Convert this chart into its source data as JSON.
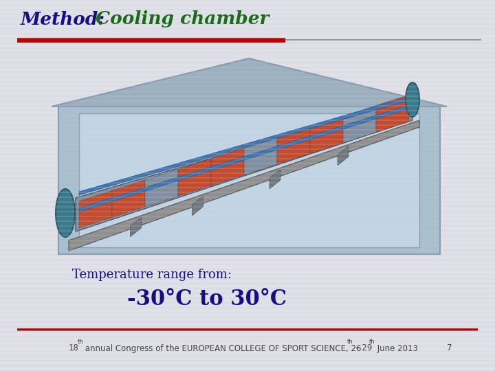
{
  "title_method": "Method:",
  "title_cooling": " Cooling chamber",
  "title_method_color": "#1a0d82",
  "title_cooling_color": "#1a6b1a",
  "bg_color": "#E0E0E8",
  "stripe_color": "#C8C8D0",
  "red_line_color": "#BB0000",
  "gray_line_color": "#999999",
  "temp_label": "Temperature range from:",
  "temp_range": "-30°C to 30°C",
  "temp_label_color": "#1a0d82",
  "temp_range_color": "#1a0d82",
  "footer_color": "#444444",
  "chamber_outer_bg": "#A8BFD0",
  "chamber_roof_color": "#9AB0C0",
  "chamber_inner_bg": "#C5D8E8",
  "chamber_wall_color": "#8899AA",
  "conveyor_blue": "#4477AA",
  "conveyor_red": "#CC4422",
  "conveyor_gray": "#8090A0",
  "conveyor_base": "#909090",
  "conveyor_leg": "#707880"
}
